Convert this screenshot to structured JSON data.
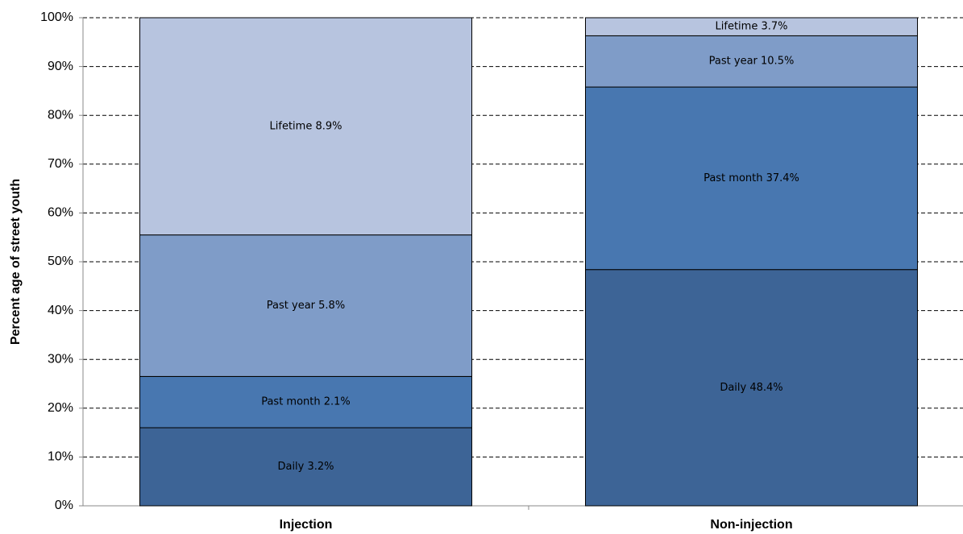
{
  "chart_data": {
    "type": "stacked_bar",
    "y_label": "Percent age of street youth",
    "categories": [
      "Injection",
      "Non-injection"
    ],
    "series": [
      {
        "name": "Daily",
        "color": "#3d6496",
        "values": [
          16,
          48.4
        ],
        "segment_labels": [
          "Daily 3.2%",
          "Daily 48.4%"
        ]
      },
      {
        "name": "Past month",
        "color": "#4877b0",
        "values": [
          10.5,
          37.4
        ],
        "segment_labels": [
          "Past month  2.1%",
          "Past month  37.4%"
        ]
      },
      {
        "name": "Past year",
        "color": "#7f9cc8",
        "values": [
          29,
          10.5
        ],
        "segment_labels": [
          "Past year 5.8%",
          "Past year 10.5%"
        ]
      },
      {
        "name": "Lifetime",
        "color": "#b7c4df",
        "values": [
          44.5,
          3.7
        ],
        "segment_labels": [
          "Lifetime 8.9%",
          "Lifetime 3.7%"
        ]
      }
    ],
    "ylim": [
      0,
      100
    ],
    "yticks": [
      {
        "value": 0,
        "label": "0%"
      },
      {
        "value": 10,
        "label": "10%"
      },
      {
        "value": 20,
        "label": "20%"
      },
      {
        "value": 30,
        "label": "30%"
      },
      {
        "value": 40,
        "label": "40%"
      },
      {
        "value": 50,
        "label": "50%"
      },
      {
        "value": 60,
        "label": "60%"
      },
      {
        "value": 70,
        "label": "70%"
      },
      {
        "value": 80,
        "label": "80%"
      },
      {
        "value": 90,
        "label": "90%"
      },
      {
        "value": 100,
        "label": "100%"
      }
    ],
    "grid": true
  }
}
